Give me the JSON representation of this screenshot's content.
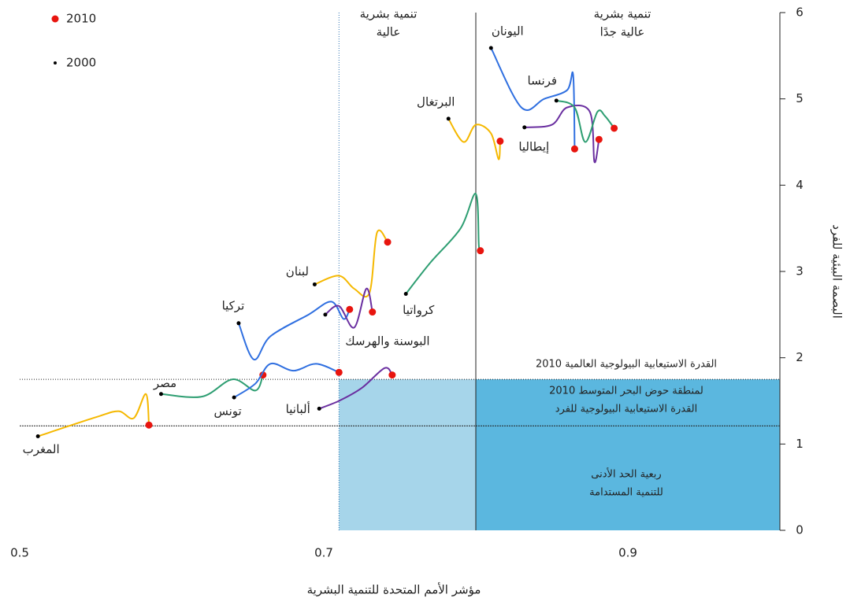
{
  "chart_data": {
    "type": "line",
    "x_label": "مؤشر الأمم المتحدة للتنمية البشرية",
    "y_label": "البصمة البيئية للفرد",
    "xlim": [
      0.5,
      1.0
    ],
    "xticks": [
      0.5,
      0.7,
      0.9
    ],
    "ylim": [
      0,
      6
    ],
    "yticks": [
      0,
      1,
      2,
      3,
      4,
      5,
      6
    ],
    "legend": [
      {
        "label": "2010",
        "color": "#e8150f"
      },
      {
        "label": "2000",
        "color": "#000000"
      }
    ],
    "thresholds": {
      "hdi_high": 0.71,
      "hdi_very_high": 0.8,
      "world_biocapacity": 1.75,
      "med_biocapacity": 1.21
    },
    "regions": [
      {
        "x": [
          0.71,
          0.8
        ],
        "y": [
          0,
          1.75
        ],
        "color": "#a6d5ea"
      },
      {
        "x": [
          0.8,
          1.0
        ],
        "y": [
          0,
          1.75
        ],
        "color": "#5bb7df"
      }
    ],
    "annotations": [
      {
        "lines": [
          "تنمية بشرية",
          "عالية"
        ]
      },
      {
        "lines": [
          "تنمية بشرية",
          "عالية جدًا"
        ]
      },
      {
        "lines": [
          "القدرة الاستيعابية البيولوجية العالمية 2010"
        ]
      },
      {
        "lines": [
          "لمنطقة حوض البحر المتوسط 2010",
          "القدرة الاستيعابية البيولوجية للفرد"
        ]
      },
      {
        "lines": [
          "ربعية الحد الأدنى",
          "للتنمية المستدامة"
        ]
      }
    ],
    "series": [
      {
        "name": "المغرب",
        "color": "#f5b800",
        "x": [
          0.512,
          0.55,
          0.565,
          0.575,
          0.583,
          0.585
        ],
        "values": [
          1.09,
          1.31,
          1.38,
          1.3,
          1.58,
          1.22
        ]
      },
      {
        "name": "مصر",
        "color": "#2e9e72",
        "x": [
          0.593,
          0.62,
          0.64,
          0.655,
          0.66
        ],
        "values": [
          1.58,
          1.55,
          1.75,
          1.62,
          1.8
        ]
      },
      {
        "name": "تونس",
        "color": "#2f6fe0",
        "x": [
          0.641,
          0.655,
          0.665,
          0.68,
          0.695,
          0.71
        ],
        "values": [
          1.54,
          1.7,
          1.93,
          1.85,
          1.93,
          1.83
        ]
      },
      {
        "name": "ألبانيا",
        "color": "#6a2fa0",
        "x": [
          0.697,
          0.71,
          0.725,
          0.74,
          0.745
        ],
        "values": [
          1.41,
          1.5,
          1.65,
          1.88,
          1.8
        ]
      },
      {
        "name": "تركيا",
        "color": "#2f6fe0",
        "x": [
          0.644,
          0.654,
          0.665,
          0.69,
          0.705,
          0.713,
          0.717
        ],
        "values": [
          2.4,
          1.98,
          2.25,
          2.5,
          2.65,
          2.45,
          2.56
        ]
      },
      {
        "name": "لبنان",
        "color": "#f5b800",
        "x": [
          0.694,
          0.71,
          0.72,
          0.73,
          0.735,
          0.742
        ],
        "values": [
          2.85,
          2.95,
          2.8,
          2.75,
          3.45,
          3.34
        ]
      },
      {
        "name": "البوسنة والهرسك",
        "color": "#6a2fa0",
        "x": [
          0.701,
          0.71,
          0.72,
          0.728,
          0.732
        ],
        "values": [
          2.5,
          2.6,
          2.35,
          2.8,
          2.53
        ]
      },
      {
        "name": "كرواتيا",
        "color": "#2e9e72",
        "x": [
          0.754,
          0.77,
          0.79,
          0.8,
          0.802,
          0.803
        ],
        "values": [
          2.74,
          3.1,
          3.5,
          3.9,
          3.3,
          3.24
        ]
      },
      {
        "name": "البرتغال",
        "color": "#f5b800",
        "x": [
          0.782,
          0.792,
          0.8,
          0.81,
          0.815,
          0.816
        ],
        "values": [
          4.77,
          4.5,
          4.7,
          4.6,
          4.3,
          4.51
        ]
      },
      {
        "name": "اليونان",
        "color": "#2f6fe0",
        "x": [
          0.81,
          0.83,
          0.845,
          0.86,
          0.864,
          0.865
        ],
        "values": [
          5.59,
          4.9,
          5.0,
          5.1,
          5.28,
          4.42
        ]
      },
      {
        "name": "إيطاليا",
        "color": "#6a2fa0",
        "x": [
          0.832,
          0.85,
          0.86,
          0.875,
          0.878,
          0.881
        ],
        "values": [
          4.67,
          4.7,
          4.9,
          4.85,
          4.27,
          4.53
        ]
      },
      {
        "name": "فرنسا",
        "color": "#2e9e72",
        "x": [
          0.853,
          0.865,
          0.872,
          0.88,
          0.885,
          0.891
        ],
        "values": [
          4.98,
          4.9,
          4.5,
          4.85,
          4.8,
          4.66
        ]
      }
    ]
  }
}
